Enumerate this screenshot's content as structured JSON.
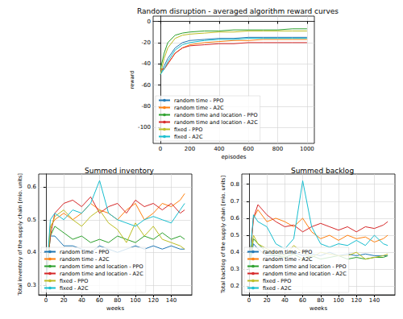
{
  "chart_data": [
    {
      "type": "line",
      "title": "Random disruption - averaged algorithm reward curves",
      "x_label": "episodes",
      "y_label": "reward",
      "xlim": [
        -50,
        1050
      ],
      "xticks": [
        0,
        200,
        400,
        600,
        800,
        1000
      ],
      "ylim": [
        -115,
        5
      ],
      "yticks": [
        -100,
        -80,
        -60,
        -40,
        -20,
        0
      ],
      "grid": true,
      "legend": "lower left",
      "x": [
        0,
        25,
        50,
        100,
        150,
        200,
        300,
        400,
        500,
        600,
        700,
        800,
        900,
        1000
      ],
      "series": [
        {
          "name": "random time - PPO",
          "color": "#1f77b4",
          "values": [
            -50,
            -42,
            -35,
            -25,
            -20,
            -18,
            -17,
            -16,
            -16,
            -15,
            -15,
            -15,
            -15,
            -15
          ]
        },
        {
          "name": "random time - A2C",
          "color": "#ff7f0e",
          "values": [
            -45,
            -45,
            -40,
            -30,
            -25,
            -22,
            -20,
            -19,
            -18,
            -18,
            -17,
            -17,
            -17,
            -17
          ]
        },
        {
          "name": "random time and location - PPO",
          "color": "#2ca02c",
          "values": [
            -45,
            -30,
            -20,
            -13,
            -11,
            -10,
            -9,
            -9,
            -8,
            -8,
            -8,
            -8,
            -7,
            -7
          ]
        },
        {
          "name": "random time and location - A2C",
          "color": "#d62728",
          "values": [
            -45,
            -45,
            -40,
            -30,
            -25,
            -23,
            -22,
            -21,
            -21,
            -20,
            -20,
            -20,
            -20,
            -20
          ]
        },
        {
          "name": "fixed - PPO",
          "color": "#bcbd22",
          "values": [
            -50,
            -35,
            -25,
            -16,
            -13,
            -12,
            -11,
            -10,
            -10,
            -9,
            -9,
            -9,
            -9,
            -9
          ]
        },
        {
          "name": "fixed - A2C",
          "color": "#17becf",
          "values": [
            -50,
            -45,
            -38,
            -27,
            -22,
            -20,
            -18,
            -17,
            -17,
            -16,
            -16,
            -16,
            -16,
            -16
          ]
        }
      ]
    },
    {
      "type": "line",
      "title": "Summed inventory",
      "x_label": "weeks",
      "y_label": "Total inventory of the supply chain [mio. units]",
      "xlim": [
        -8,
        163
      ],
      "xticks": [
        0,
        20,
        40,
        60,
        80,
        100,
        120,
        140
      ],
      "ylim": [
        0.27,
        0.64
      ],
      "yticks": [
        0.3,
        0.4,
        0.5,
        0.6
      ],
      "grid": true,
      "legend": "lower left",
      "x": [
        0,
        5,
        10,
        20,
        30,
        40,
        50,
        60,
        70,
        80,
        90,
        100,
        110,
        120,
        130,
        140,
        150,
        155
      ],
      "series": [
        {
          "name": "random time - PPO",
          "color": "#1f77b4",
          "values": [
            0.3,
            0.45,
            0.45,
            0.42,
            0.42,
            0.41,
            0.4,
            0.42,
            0.41,
            0.4,
            0.41,
            0.42,
            0.41,
            0.42,
            0.41,
            0.42,
            0.41,
            0.41
          ]
        },
        {
          "name": "random time - A2C",
          "color": "#ff7f0e",
          "values": [
            0.3,
            0.48,
            0.5,
            0.52,
            0.5,
            0.52,
            0.55,
            0.53,
            0.52,
            0.5,
            0.53,
            0.55,
            0.5,
            0.52,
            0.55,
            0.54,
            0.56,
            0.58
          ]
        },
        {
          "name": "random time and location - PPO",
          "color": "#2ca02c",
          "values": [
            0.3,
            0.45,
            0.48,
            0.46,
            0.44,
            0.45,
            0.43,
            0.44,
            0.43,
            0.45,
            0.44,
            0.43,
            0.45,
            0.44,
            0.46,
            0.44,
            0.45,
            0.44
          ]
        },
        {
          "name": "random time and location - A2C",
          "color": "#d62728",
          "values": [
            0.3,
            0.45,
            0.52,
            0.55,
            0.56,
            0.54,
            0.57,
            0.52,
            0.54,
            0.55,
            0.52,
            0.56,
            0.54,
            0.55,
            0.53,
            0.55,
            0.52,
            0.53
          ]
        },
        {
          "name": "fixed - PPO",
          "color": "#bcbd22",
          "values": [
            0.3,
            0.47,
            0.51,
            0.53,
            0.5,
            0.48,
            0.51,
            0.53,
            0.49,
            0.47,
            0.43,
            0.49,
            0.45,
            0.48,
            0.44,
            0.43,
            0.42,
            0.41
          ]
        },
        {
          "name": "fixed - A2C",
          "color": "#17becf",
          "values": [
            0.3,
            0.5,
            0.52,
            0.5,
            0.53,
            0.52,
            0.55,
            0.62,
            0.52,
            0.5,
            0.49,
            0.48,
            0.5,
            0.51,
            0.5,
            0.49,
            0.53,
            0.55
          ]
        }
      ]
    },
    {
      "type": "line",
      "title": "Summed backlog",
      "x_label": "weeks",
      "y_label": "Total backlog of the supply chain [mio. units]",
      "xlim": [
        -8,
        163
      ],
      "xticks": [
        0,
        20,
        40,
        60,
        80,
        100,
        120,
        140
      ],
      "ylim": [
        0.15,
        0.86
      ],
      "yticks": [
        0.2,
        0.3,
        0.4,
        0.5,
        0.6,
        0.7,
        0.8
      ],
      "grid": true,
      "legend": "lower left",
      "x": [
        0,
        5,
        10,
        20,
        30,
        40,
        50,
        60,
        70,
        80,
        90,
        100,
        110,
        120,
        130,
        140,
        150,
        155
      ],
      "series": [
        {
          "name": "random time - PPO",
          "color": "#1f77b4",
          "values": [
            0.3,
            0.45,
            0.42,
            0.38,
            0.38,
            0.39,
            0.4,
            0.38,
            0.39,
            0.38,
            0.4,
            0.38,
            0.39,
            0.38,
            0.39,
            0.38,
            0.38,
            0.38
          ]
        },
        {
          "name": "random time - A2C",
          "color": "#ff7f0e",
          "values": [
            0.3,
            0.6,
            0.65,
            0.58,
            0.6,
            0.58,
            0.55,
            0.6,
            0.52,
            0.48,
            0.5,
            0.47,
            0.5,
            0.48,
            0.49,
            0.46,
            0.48,
            0.5
          ]
        },
        {
          "name": "random time and location - PPO",
          "color": "#2ca02c",
          "values": [
            0.3,
            0.48,
            0.45,
            0.4,
            0.38,
            0.37,
            0.39,
            0.36,
            0.38,
            0.36,
            0.37,
            0.38,
            0.36,
            0.37,
            0.36,
            0.37,
            0.37,
            0.38
          ]
        },
        {
          "name": "random time and location - A2C",
          "color": "#d62728",
          "values": [
            0.3,
            0.6,
            0.68,
            0.62,
            0.58,
            0.55,
            0.56,
            0.52,
            0.55,
            0.57,
            0.55,
            0.53,
            0.55,
            0.52,
            0.55,
            0.54,
            0.56,
            0.58
          ]
        },
        {
          "name": "fixed - PPO",
          "color": "#bcbd22",
          "values": [
            0.3,
            0.5,
            0.45,
            0.42,
            0.4,
            0.38,
            0.44,
            0.4,
            0.37,
            0.4,
            0.39,
            0.38,
            0.38,
            0.4,
            0.36,
            0.37,
            0.38,
            0.39
          ]
        },
        {
          "name": "fixed - A2C",
          "color": "#17becf",
          "values": [
            0.3,
            0.62,
            0.58,
            0.55,
            0.45,
            0.42,
            0.48,
            0.82,
            0.55,
            0.45,
            0.43,
            0.45,
            0.44,
            0.47,
            0.44,
            0.5,
            0.45,
            0.44
          ]
        }
      ]
    }
  ]
}
